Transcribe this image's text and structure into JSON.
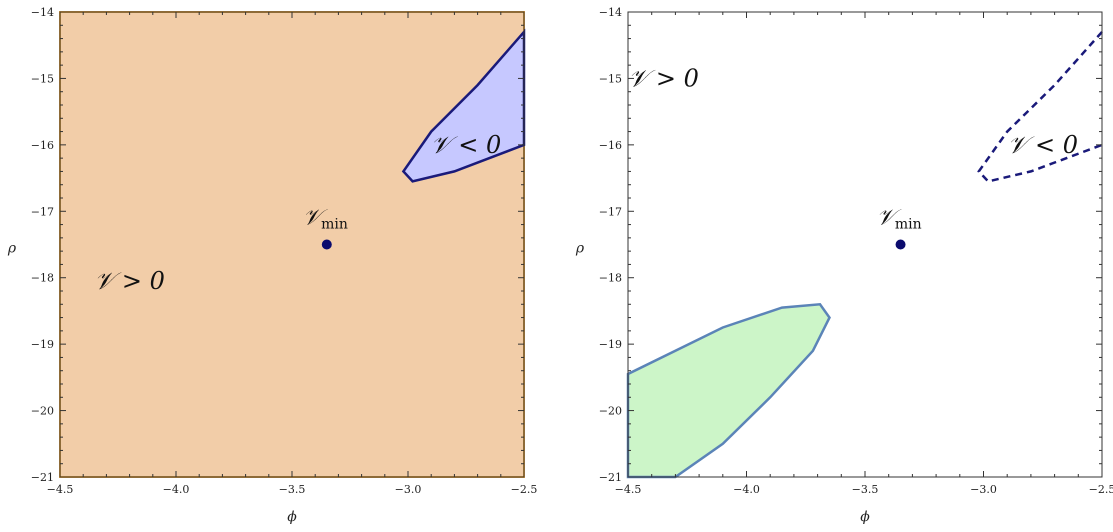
{
  "chart_data": [
    {
      "type": "contour-region",
      "xlabel": "ϕ",
      "ylabel": "ρ",
      "xlim": [
        -4.5,
        -2.5
      ],
      "ylim": [
        -21,
        -14
      ],
      "x_ticks": [
        -4.5,
        -4.0,
        -3.5,
        -3.0,
        -2.5
      ],
      "x_tick_labels": [
        "−4.5",
        "−4.0",
        "−3.5",
        "−3.0",
        "−2.5"
      ],
      "y_ticks": [
        -14,
        -15,
        -16,
        -17,
        -18,
        -19,
        -20,
        -21
      ],
      "y_tick_labels": [
        "−14",
        "−15",
        "−16",
        "−17",
        "−18",
        "−19",
        "−20",
        "−21"
      ],
      "colors": {
        "fill_region": "#f2cda8",
        "fill_border": "#e8a33c",
        "neg_fill": "#c6c8ff",
        "neg_border": "#1a1a7a",
        "point": "#0b0b6e"
      },
      "regions": [
        {
          "kind": "rect",
          "x": [
            -4.5,
            -2.5
          ],
          "y": [
            -21,
            -14
          ]
        },
        {
          "kind": "neg",
          "points": [
            [
              -2.5,
              -14.3
            ],
            [
              -2.7,
              -15.1
            ],
            [
              -2.9,
              -15.8
            ],
            [
              -3.02,
              -16.4
            ],
            [
              -2.98,
              -16.55
            ],
            [
              -2.8,
              -16.4
            ],
            [
              -2.5,
              -16.0
            ]
          ]
        }
      ],
      "point": {
        "x": -3.35,
        "y": -17.5
      },
      "min_label": {
        "main": "𝒱",
        "sub": "min"
      },
      "annotations": [
        {
          "text": "𝒱 > 0",
          "x": -4.2,
          "y": -18.05
        },
        {
          "text": "𝒱 < 0",
          "x": -2.75,
          "y": -16.0
        }
      ]
    },
    {
      "type": "contour-region",
      "xlabel": "ϕ",
      "ylabel": "ρ",
      "xlim": [
        -4.5,
        -2.5
      ],
      "ylim": [
        -21,
        -14
      ],
      "x_ticks": [
        -4.5,
        -4.0,
        -3.5,
        -3.0,
        -2.5
      ],
      "x_tick_labels": [
        "−4.5",
        "−4.0",
        "−3.5",
        "−3.0",
        "−2.5"
      ],
      "y_ticks": [
        -14,
        -15,
        -16,
        -17,
        -18,
        -19,
        -20,
        -21
      ],
      "y_tick_labels": [
        "−14",
        "−15",
        "−16",
        "−17",
        "−18",
        "−19",
        "−20",
        "−21"
      ],
      "colors": {
        "green_fill": "#ccf5c8",
        "green_border": "#5b84b8",
        "dashed": "#1a1a7a",
        "point": "#0b0b6e"
      },
      "regions": [
        {
          "kind": "dashed",
          "points": [
            [
              -2.5,
              -14.3
            ],
            [
              -2.7,
              -15.1
            ],
            [
              -2.9,
              -15.8
            ],
            [
              -3.02,
              -16.4
            ],
            [
              -2.98,
              -16.55
            ],
            [
              -2.8,
              -16.4
            ],
            [
              -2.5,
              -16.0
            ]
          ]
        },
        {
          "kind": "green",
          "points": [
            [
              -4.5,
              -21.0
            ],
            [
              -4.3,
              -21.0
            ],
            [
              -4.1,
              -20.5
            ],
            [
              -3.9,
              -19.8
            ],
            [
              -3.72,
              -19.1
            ],
            [
              -3.65,
              -18.6
            ],
            [
              -3.69,
              -18.4
            ],
            [
              -3.85,
              -18.45
            ],
            [
              -4.1,
              -18.75
            ],
            [
              -4.5,
              -19.45
            ]
          ]
        }
      ],
      "point": {
        "x": -3.35,
        "y": -17.5
      },
      "min_label": {
        "main": "𝒱",
        "sub": "min"
      },
      "annotations": [
        {
          "text": "𝒱 > 0",
          "x": -4.35,
          "y": -15.0
        },
        {
          "text": "𝒱 < 0",
          "x": -2.75,
          "y": -16.0
        }
      ]
    }
  ]
}
